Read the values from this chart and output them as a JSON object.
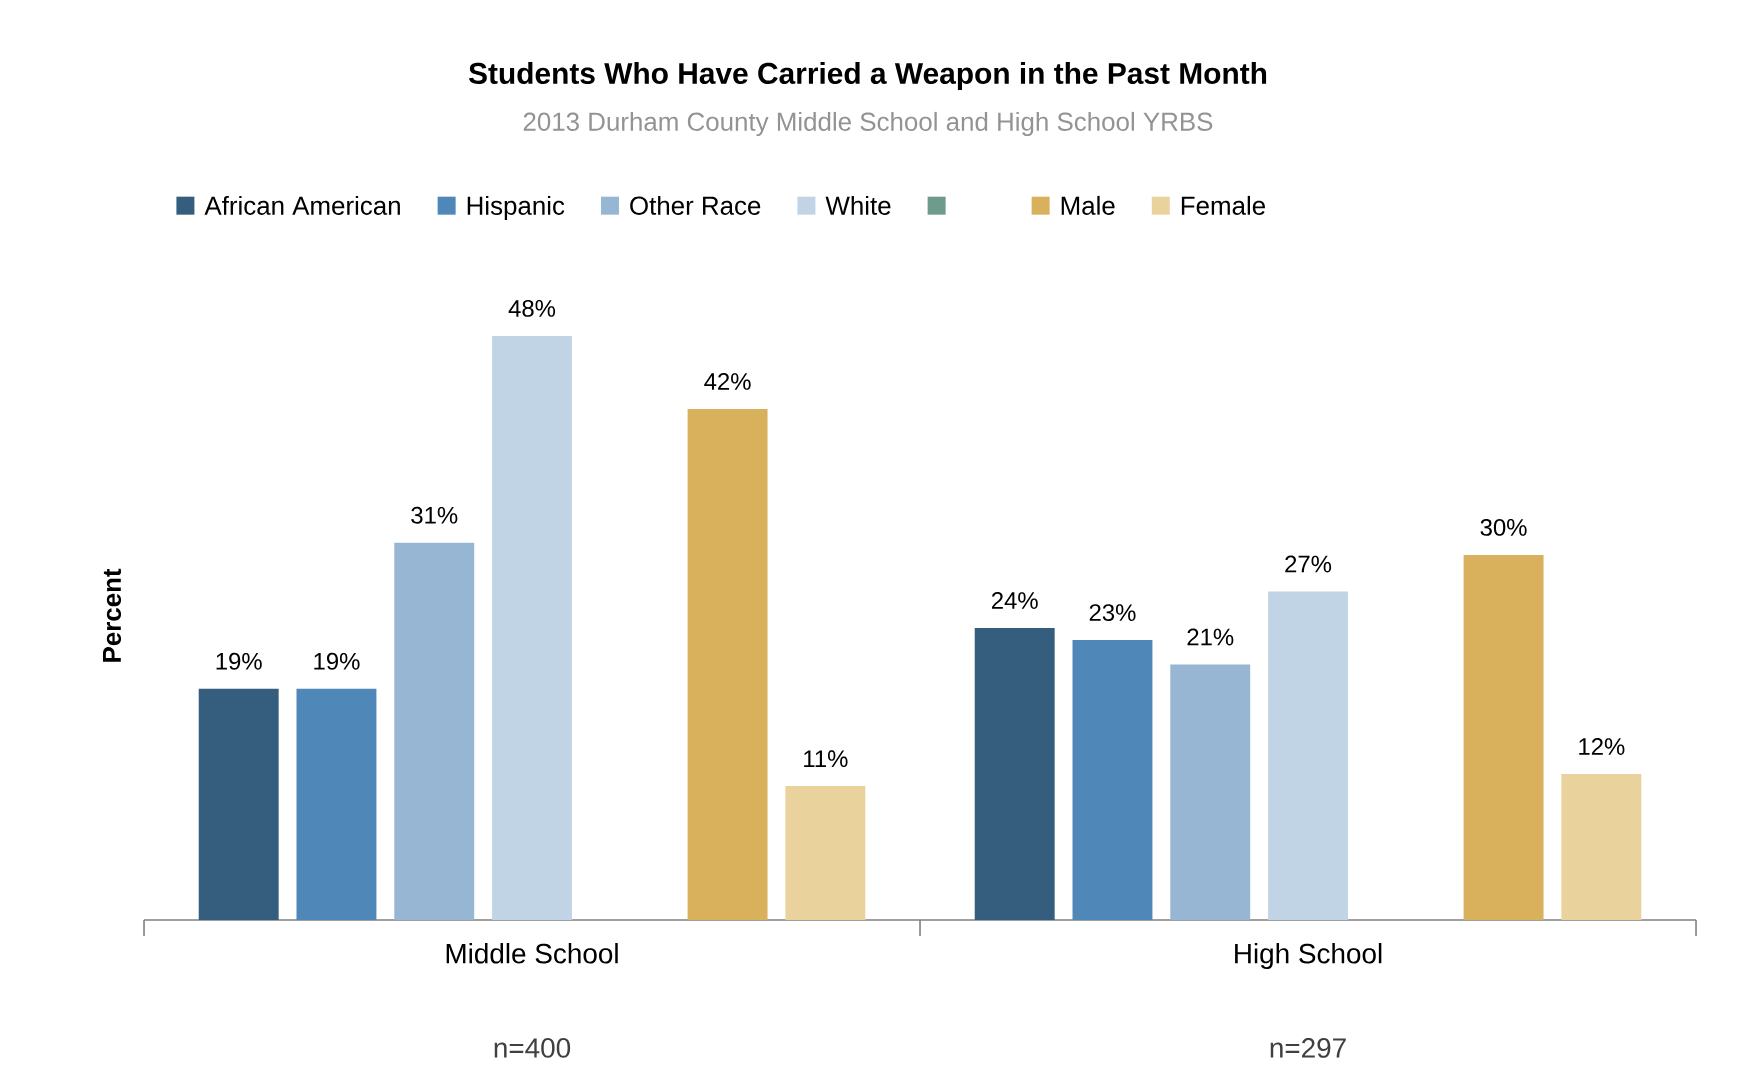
{
  "chart_data": {
    "type": "bar",
    "title": "Students Who Have Carried a Weapon in the Past Month",
    "subtitle": "2013 Durham County Middle School and High School YRBS",
    "ylabel": "Percent",
    "categories": [
      "Middle School",
      "High School"
    ],
    "annotations": [
      "n=400",
      "n=297"
    ],
    "legend": "top",
    "series": [
      {
        "name": "African American",
        "color": "#345d7e",
        "values": [
          19,
          24
        ],
        "value_labels": [
          "19%",
          "24%"
        ]
      },
      {
        "name": "Hispanic",
        "color": "#4f88b8",
        "values": [
          19,
          23
        ],
        "value_labels": [
          "19%",
          "23%"
        ]
      },
      {
        "name": "Other Race",
        "color": "#97b6d3",
        "values": [
          31,
          21
        ],
        "value_labels": [
          "31%",
          "21%"
        ]
      },
      {
        "name": "White",
        "color": "#c1d4e5",
        "values": [
          48,
          27
        ],
        "value_labels": [
          "48%",
          "27%"
        ]
      },
      {
        "color": "#6e9b8b",
        "values": [
          null,
          null
        ]
      },
      {
        "name": "Male",
        "color": "#d9b05c",
        "values": [
          42,
          30
        ],
        "value_labels": [
          "42%",
          "30%"
        ]
      },
      {
        "name": "Female",
        "color": "#ead29c",
        "values": [
          11,
          12
        ],
        "value_labels": [
          "11%",
          "12%"
        ]
      }
    ]
  }
}
